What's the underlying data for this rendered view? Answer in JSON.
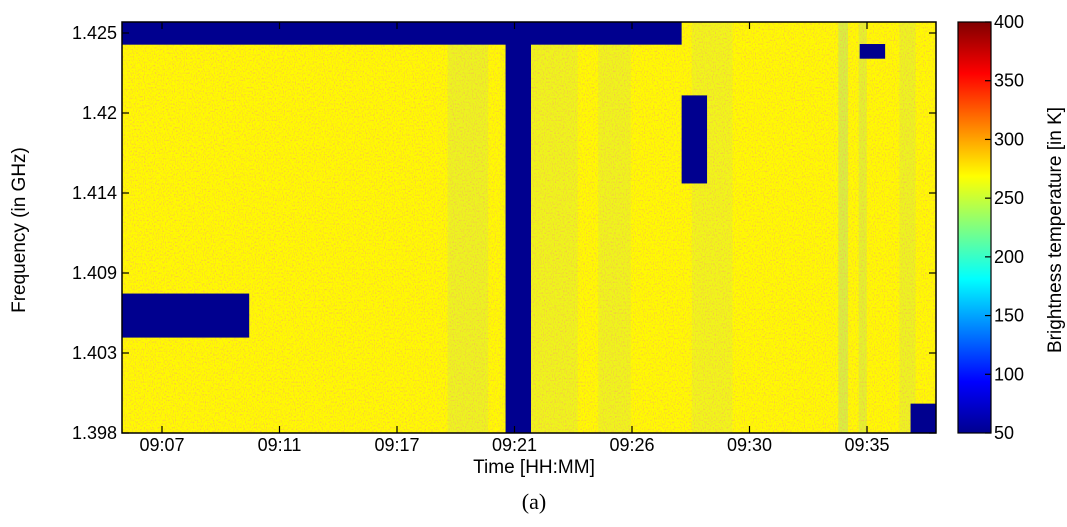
{
  "chart_data": {
    "type": "heatmap",
    "title": "",
    "caption": "(a)",
    "xlabel": "Time [HH:MM]",
    "ylabel": "Frequency (in GHz)",
    "colorbar_label": "Brightness temperature [in K]",
    "x_ticks": [
      "09:07",
      "09:11",
      "09:17",
      "09:21",
      "09:26",
      "09:30",
      "09:35"
    ],
    "y_ticks": [
      "1.398",
      "1.403",
      "1.409",
      "1.414",
      "1.42",
      "1.425"
    ],
    "x_range": [
      "09:07",
      "09:39"
    ],
    "y_range": [
      1.398,
      1.426
    ],
    "colorbar_ticks": [
      "50",
      "100",
      "150",
      "200",
      "250",
      "300",
      "350",
      "400"
    ],
    "colorbar_range": [
      50,
      400
    ],
    "colormap": "jet",
    "background_temperature_K": 270,
    "features": [
      {
        "kind": "vertical-band",
        "time_start": "09:22",
        "time_end": "09:23",
        "value_K": 50
      },
      {
        "kind": "horizontal-band",
        "freq": 1.425,
        "time_start": "09:07",
        "time_end": "09:29",
        "value_K": 50
      },
      {
        "kind": "block",
        "time_start": "09:07",
        "time_end": "09:12",
        "freq_low": 1.4045,
        "freq_high": 1.4075,
        "value_K": 50
      },
      {
        "kind": "block",
        "time_start": "09:29",
        "time_end": "09:30",
        "freq_low": 1.415,
        "freq_high": 1.421,
        "value_K": 50
      },
      {
        "kind": "block",
        "time_start": "09:38",
        "time_end": "09:39",
        "freq_low": 1.398,
        "freq_high": 1.4,
        "value_K": 50
      },
      {
        "kind": "block",
        "time_start": "09:36",
        "time_end": "09:37",
        "freq_low": 1.4235,
        "freq_high": 1.4245,
        "value_K": 50
      }
    ]
  },
  "colors": {
    "background_field": "#f2d43a",
    "cool_stripe": "#c8e85a",
    "rfi_block": "#00008f",
    "hot_speck": "#e8652a"
  }
}
